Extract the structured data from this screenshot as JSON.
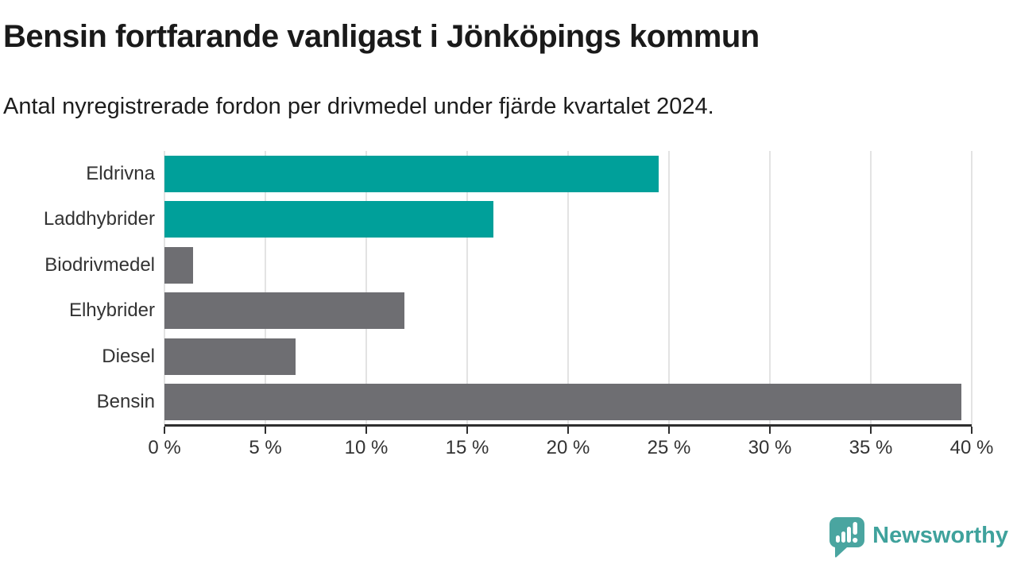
{
  "header": {
    "title": "Bensin fortfarande vanligast i Jönköpings kommun",
    "subtitle": "Antal nyregistrerade fordon per drivmedel under fjärde kvartalet 2024."
  },
  "chart_data": {
    "type": "bar",
    "orientation": "horizontal",
    "categories": [
      "Eldrivna",
      "Laddhybrider",
      "Biodrivmedel",
      "Elhybrider",
      "Diesel",
      "Bensin"
    ],
    "values": [
      24.5,
      16.3,
      1.4,
      11.9,
      6.5,
      39.5
    ],
    "unit": "%",
    "bar_colors": [
      "#00a09a",
      "#00a09a",
      "#6e6e72",
      "#6e6e72",
      "#6e6e72",
      "#6e6e72"
    ],
    "title": "Bensin fortfarande vanligast i Jönköpings kommun",
    "subtitle": "Antal nyregistrerade fordon per drivmedel under fjärde kvartalet 2024.",
    "xlabel": "",
    "ylabel": "",
    "xlim": [
      0,
      40
    ],
    "x_ticks": [
      0,
      5,
      10,
      15,
      20,
      25,
      30,
      35,
      40
    ],
    "x_tick_labels": [
      "0 %",
      "5 %",
      "10 %",
      "15 %",
      "20 %",
      "25 %",
      "30 %",
      "35 %",
      "40 %"
    ],
    "grid": "vertical-gridlines-on",
    "legend": "none"
  },
  "colors": {
    "accent_teal": "#00a09a",
    "bar_gray": "#6e6e72",
    "gridline": "#e3e3e3",
    "axis": "#2e2e2e",
    "label_text": "#333333",
    "title_text": "#1a1a1a",
    "logo_teal": "#3fa29c"
  },
  "branding": {
    "logo_text": "Newsworthy",
    "logo_icon": "bar-chart-speech-bubble-icon"
  }
}
